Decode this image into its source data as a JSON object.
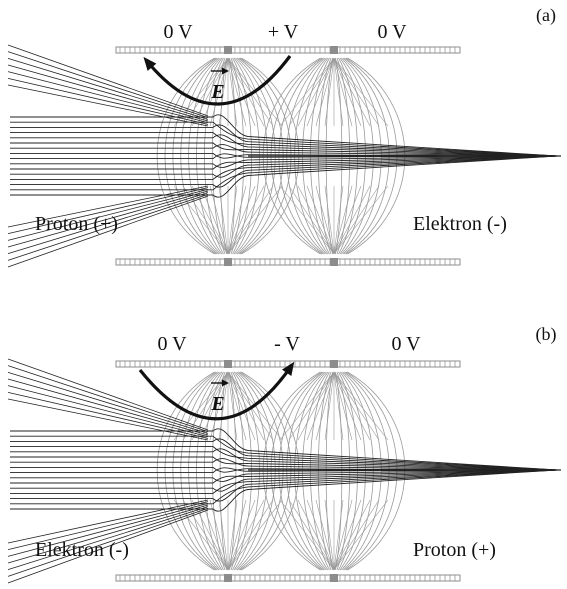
{
  "panels": [
    {
      "tag": "(a)",
      "voltages": [
        "0 V",
        "+ V",
        "0 V"
      ],
      "field_symbol": "E",
      "left_particle": "Proton (+)",
      "right_particle": "Elektron (-)",
      "arrow_direction": "counterclockwise"
    },
    {
      "tag": "(b)",
      "voltages": [
        "0 V",
        "- V",
        "0 V"
      ],
      "field_symbol": "E",
      "left_particle": "Elektron (-)",
      "right_particle": "Proton (+)",
      "arrow_direction": "clockwise"
    }
  ],
  "colors": {
    "trajectory": "#222222",
    "field_line": "#9a9a9a",
    "electrode": "#8c8c8c",
    "arrow": "#111111"
  }
}
